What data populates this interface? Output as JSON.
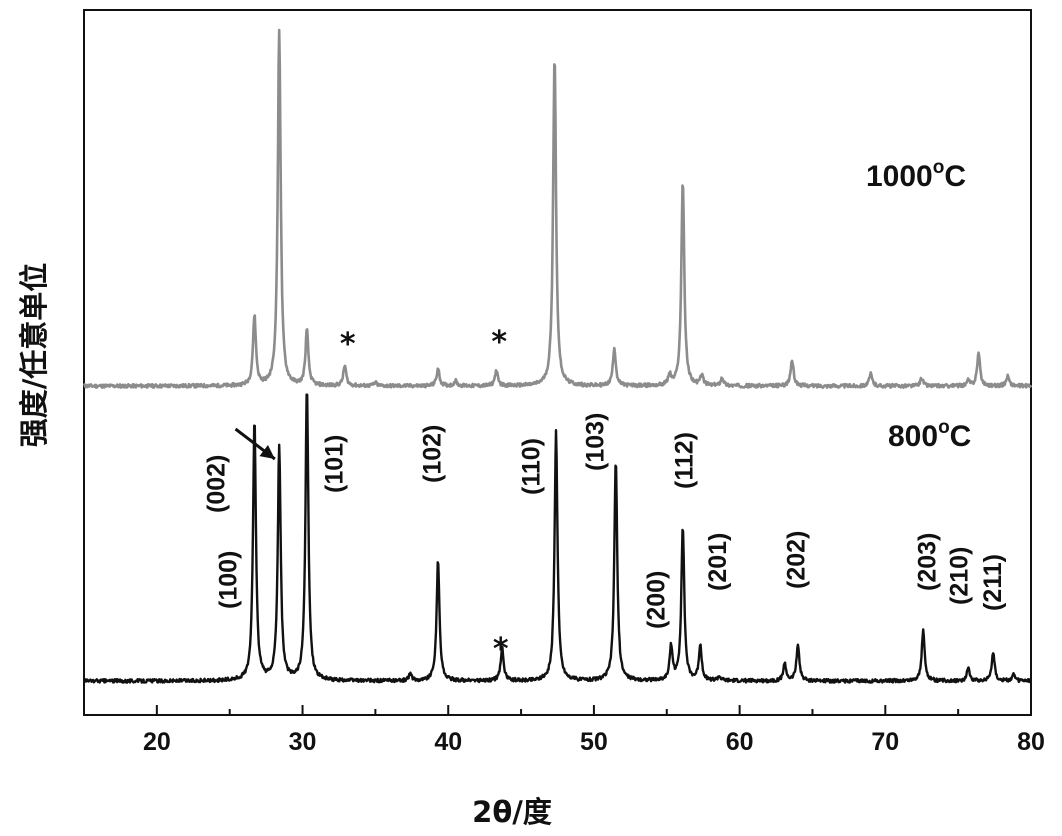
{
  "chart_data": {
    "type": "line",
    "xlabel": "2θ/度",
    "ylabel": "强度/任意单位",
    "xlim": [
      15,
      80
    ],
    "x_ticks": [
      20,
      30,
      40,
      50,
      60,
      70,
      80
    ],
    "x_tick_labels": [
      "20",
      "30",
      "40",
      "50",
      "60",
      "70",
      "80"
    ],
    "y_ticks": false,
    "grid": false,
    "series": [
      {
        "name": "1000°C",
        "label_main": "1000",
        "label_sup": "o",
        "label_tail": "C",
        "color": "#8c8c8c",
        "baseline": 0.5,
        "offset": 1.1,
        "peaks": [
          {
            "x": 26.7,
            "h": 0.7
          },
          {
            "x": 28.4,
            "h": 3.55
          },
          {
            "x": 30.3,
            "h": 0.55
          },
          {
            "x": 32.9,
            "h": 0.2
          },
          {
            "x": 35.0,
            "h": 0.03
          },
          {
            "x": 39.3,
            "h": 0.17
          },
          {
            "x": 40.5,
            "h": 0.05
          },
          {
            "x": 43.3,
            "h": 0.15
          },
          {
            "x": 47.3,
            "h": 3.3
          },
          {
            "x": 51.4,
            "h": 0.38
          },
          {
            "x": 55.2,
            "h": 0.1
          },
          {
            "x": 56.1,
            "h": 2.05
          },
          {
            "x": 57.4,
            "h": 0.1
          },
          {
            "x": 58.8,
            "h": 0.08
          },
          {
            "x": 63.6,
            "h": 0.26
          },
          {
            "x": 69.0,
            "h": 0.12
          },
          {
            "x": 72.5,
            "h": 0.08
          },
          {
            "x": 75.7,
            "h": 0.05
          },
          {
            "x": 76.4,
            "h": 0.33
          },
          {
            "x": 78.4,
            "h": 0.1
          }
        ],
        "markers": [
          {
            "x": 33.1,
            "h": 0.52,
            "text": "*"
          },
          {
            "x": 43.5,
            "h": 0.54,
            "text": "*"
          }
        ]
      },
      {
        "name": "800°C",
        "label_main": "800",
        "label_sup": "o",
        "label_tail": "C",
        "color": "#111111",
        "baseline": 0.0,
        "offset": 0.0,
        "peaks": [
          {
            "x": 26.7,
            "h": 2.62
          },
          {
            "x": 28.4,
            "h": 2.35
          },
          {
            "x": 30.3,
            "h": 2.92
          },
          {
            "x": 37.4,
            "h": 0.07
          },
          {
            "x": 39.3,
            "h": 1.2
          },
          {
            "x": 43.7,
            "h": 0.33
          },
          {
            "x": 47.4,
            "h": 2.5
          },
          {
            "x": 51.5,
            "h": 2.2
          },
          {
            "x": 55.3,
            "h": 0.34
          },
          {
            "x": 56.1,
            "h": 1.54
          },
          {
            "x": 57.3,
            "h": 0.35
          },
          {
            "x": 58.6,
            "h": 0.04
          },
          {
            "x": 63.1,
            "h": 0.17
          },
          {
            "x": 64.0,
            "h": 0.36
          },
          {
            "x": 72.6,
            "h": 0.5
          },
          {
            "x": 75.7,
            "h": 0.13
          },
          {
            "x": 77.4,
            "h": 0.29
          },
          {
            "x": 78.8,
            "h": 0.06
          }
        ],
        "markers": [
          {
            "x": 43.6,
            "h": 0.42,
            "text": "*"
          }
        ],
        "annotations": [
          {
            "text": "(100)",
            "x": 25.0,
            "h": 0.72
          },
          {
            "text": "(002)",
            "x": 24.2,
            "h": 1.68
          },
          {
            "text": "(101)",
            "x": 32.3,
            "h": 1.88
          },
          {
            "text": "(102)",
            "x": 39.0,
            "h": 1.98
          },
          {
            "text": "(110)",
            "x": 45.8,
            "h": 1.86
          },
          {
            "text": "(103)",
            "x": 50.2,
            "h": 2.1
          },
          {
            "text": "(200)",
            "x": 54.4,
            "h": 0.52
          },
          {
            "text": "(112)",
            "x": 56.3,
            "h": 1.92
          },
          {
            "text": "(201)",
            "x": 58.6,
            "h": 0.9
          },
          {
            "text": "(202)",
            "x": 64.0,
            "h": 0.92
          },
          {
            "text": "(203)",
            "x": 73.0,
            "h": 0.9
          },
          {
            "text": "(210)",
            "x": 75.2,
            "h": 0.76
          },
          {
            "text": "(211)",
            "x": 77.5,
            "h": 0.7
          }
        ]
      }
    ]
  }
}
